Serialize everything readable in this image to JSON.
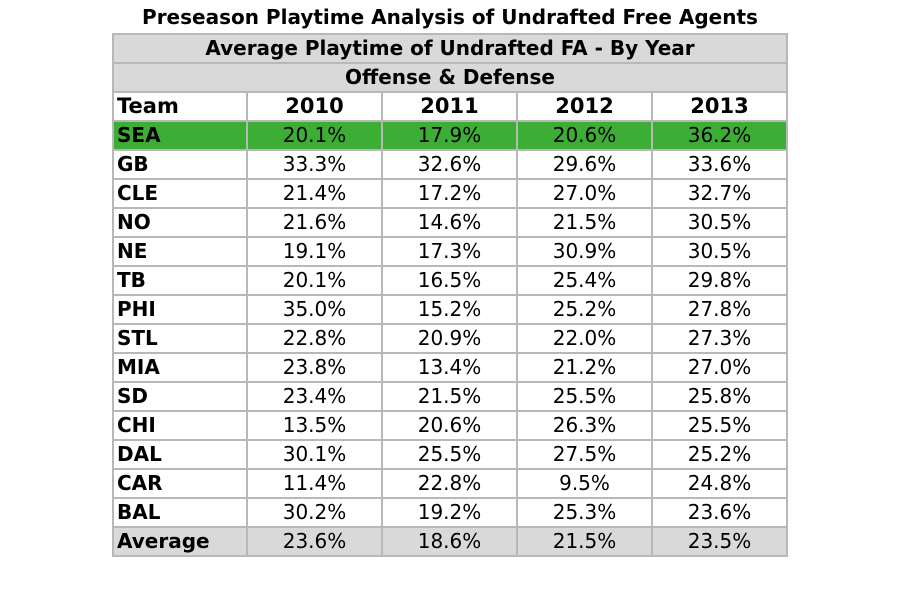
{
  "title": "Preseason Playtime Analysis of Undrafted Free Agents",
  "chart_data": {
    "type": "table",
    "title": "Preseason Playtime Analysis of Undrafted Free Agents",
    "subtitle": "Average Playtime of Undrafted FA - By Year",
    "subtitle2": "Offense & Defense",
    "columns": [
      "Team",
      "2010",
      "2011",
      "2012",
      "2013"
    ],
    "rows": [
      {
        "team": "SEA",
        "values": [
          "20.1%",
          "17.9%",
          "20.6%",
          "36.2%"
        ]
      },
      {
        "team": "GB",
        "values": [
          "33.3%",
          "32.6%",
          "29.6%",
          "33.6%"
        ]
      },
      {
        "team": "CLE",
        "values": [
          "21.4%",
          "17.2%",
          "27.0%",
          "32.7%"
        ]
      },
      {
        "team": "NO",
        "values": [
          "21.6%",
          "14.6%",
          "21.5%",
          "30.5%"
        ]
      },
      {
        "team": "NE",
        "values": [
          "19.1%",
          "17.3%",
          "30.9%",
          "30.5%"
        ]
      },
      {
        "team": "TB",
        "values": [
          "20.1%",
          "16.5%",
          "25.4%",
          "29.8%"
        ]
      },
      {
        "team": "PHI",
        "values": [
          "35.0%",
          "15.2%",
          "25.2%",
          "27.8%"
        ]
      },
      {
        "team": "STL",
        "values": [
          "22.8%",
          "20.9%",
          "22.0%",
          "27.3%"
        ]
      },
      {
        "team": "MIA",
        "values": [
          "23.8%",
          "13.4%",
          "21.2%",
          "27.0%"
        ]
      },
      {
        "team": "SD",
        "values": [
          "23.4%",
          "21.5%",
          "25.5%",
          "25.8%"
        ]
      },
      {
        "team": "CHI",
        "values": [
          "13.5%",
          "20.6%",
          "26.3%",
          "25.5%"
        ]
      },
      {
        "team": "DAL",
        "values": [
          "30.1%",
          "25.5%",
          "27.5%",
          "25.2%"
        ]
      },
      {
        "team": "CAR",
        "values": [
          "11.4%",
          "22.8%",
          "9.5%",
          "24.8%"
        ]
      },
      {
        "team": "BAL",
        "values": [
          "30.2%",
          "19.2%",
          "25.3%",
          "23.6%"
        ]
      }
    ],
    "average": {
      "label": "Average",
      "values": [
        "23.6%",
        "18.6%",
        "21.5%",
        "23.5%"
      ]
    },
    "highlight_team": "SEA",
    "highlight_color": "#3dae35",
    "banner_color": "#d9d9d9"
  }
}
